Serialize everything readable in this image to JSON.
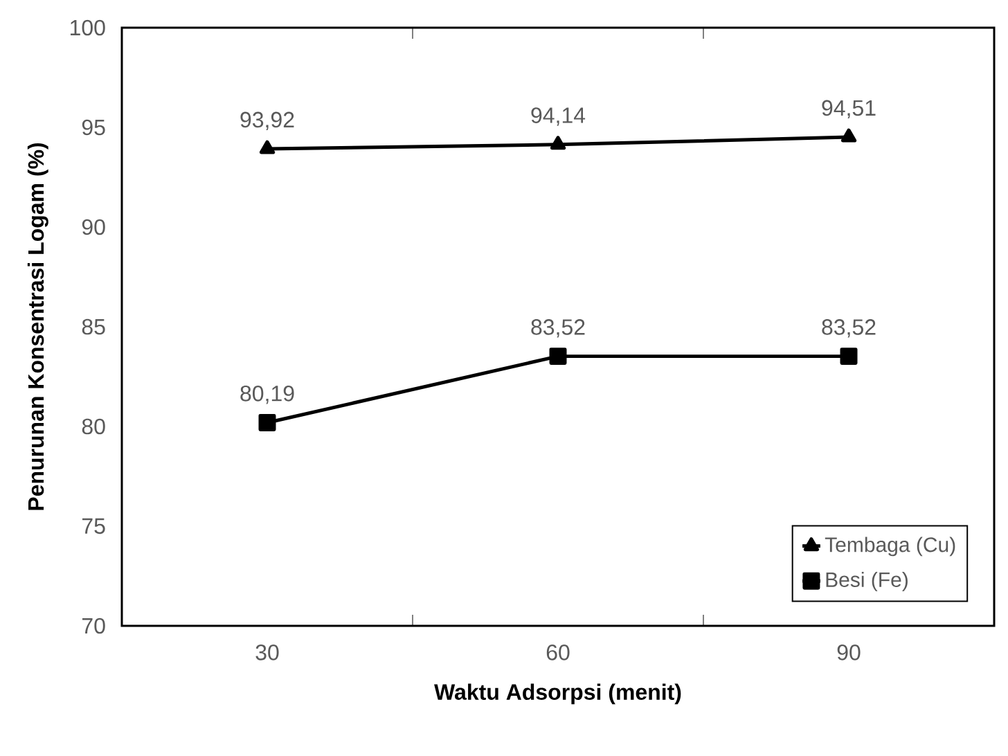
{
  "chart_data": {
    "type": "line",
    "xlabel": "Waktu Adsorpsi (menit)",
    "ylabel": "Penurunan Konsentrasi Logam (%)",
    "categories": [
      "30",
      "60",
      "90"
    ],
    "series": [
      {
        "name": "Tembaga (Cu)",
        "color": "#000000",
        "marker": "triangle",
        "values": [
          93.92,
          94.14,
          94.51
        ],
        "value_labels": [
          "93,92",
          "94,14",
          "94,51"
        ]
      },
      {
        "name": "Besi (Fe)",
        "color": "#000000",
        "marker": "square",
        "values": [
          80.19,
          83.52,
          83.52
        ],
        "value_labels": [
          "80,19",
          "83,52",
          "83,52"
        ]
      }
    ],
    "ylim": [
      70,
      100
    ],
    "yticks": [
      70,
      75,
      80,
      85,
      90,
      95,
      100
    ],
    "grid": false,
    "legend": "bottom right",
    "line_style": "solid"
  }
}
